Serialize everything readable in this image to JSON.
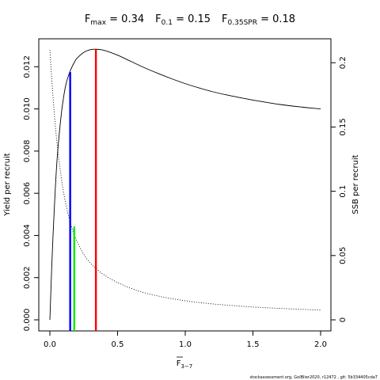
{
  "title": {
    "fmax_label": "F",
    "fmax_sub": "max",
    "fmax_value": " = 0.34",
    "f01_label": "F",
    "f01_sub": "0.1",
    "f01_value": " = 0.15",
    "f035_label": "F",
    "f035_sub": "0.35SPR",
    "f035_value": " = 0.18"
  },
  "footer": "stockassessment.org, GolBlier2020, r12472 , git: 5b334405cda7",
  "chart_data": {
    "type": "line",
    "xlabel": "F",
    "xlabel_sub": "3−7",
    "ylabel": "Yield per recruit",
    "y2label": "SSB per recruit",
    "xlim": [
      0,
      2
    ],
    "ylim": [
      0,
      0.0128
    ],
    "y2lim": [
      0,
      0.21
    ],
    "x_ticks": [
      0.0,
      0.5,
      1.0,
      1.5,
      2.0
    ],
    "x_tick_labels": [
      "0.0",
      "0.5",
      "1.0",
      "1.5",
      "2.0"
    ],
    "y_ticks": [
      0.0,
      0.002,
      0.004,
      0.006,
      0.008,
      0.01,
      0.012
    ],
    "y_tick_labels": [
      "0.000",
      "0.002",
      "0.004",
      "0.006",
      "0.008",
      "0.010",
      "0.012"
    ],
    "y2_ticks": [
      0,
      0.05,
      0.1,
      0.15,
      0.2
    ],
    "y2_tick_labels": [
      "0",
      "0.05",
      "0.1",
      "0.15",
      "0.2"
    ],
    "series": [
      {
        "style": "solid",
        "axis": "left",
        "x": [
          0,
          0.02,
          0.05,
          0.08,
          0.1,
          0.12,
          0.15,
          0.18,
          0.2,
          0.25,
          0.3,
          0.34,
          0.4,
          0.5,
          0.6,
          0.7,
          0.8,
          0.9,
          1.0,
          1.1,
          1.2,
          1.3,
          1.4,
          1.5,
          1.6,
          1.7,
          1.8,
          1.9,
          2.0
        ],
        "y": [
          0.0,
          0.0035,
          0.0073,
          0.0095,
          0.0105,
          0.0112,
          0.0118,
          0.0122,
          0.0124,
          0.01268,
          0.01281,
          0.01283,
          0.01278,
          0.01255,
          0.01225,
          0.01195,
          0.01168,
          0.01143,
          0.0112,
          0.011,
          0.01082,
          0.01067,
          0.01054,
          0.01042,
          0.01031,
          0.01021,
          0.01013,
          0.01006,
          0.01
        ]
      },
      {
        "style": "dotted",
        "axis": "right",
        "x": [
          0,
          0.02,
          0.05,
          0.08,
          0.1,
          0.12,
          0.15,
          0.18,
          0.2,
          0.25,
          0.3,
          0.34,
          0.4,
          0.5,
          0.6,
          0.7,
          0.8,
          0.9,
          1.0,
          1.1,
          1.2,
          1.3,
          1.4,
          1.5,
          1.6,
          1.7,
          1.8,
          1.9,
          2.0
        ],
        "y": [
          0.21,
          0.178,
          0.14,
          0.114,
          0.1,
          0.089,
          0.076,
          0.066,
          0.061,
          0.051,
          0.044,
          0.04,
          0.035,
          0.029,
          0.0245,
          0.021,
          0.0185,
          0.0165,
          0.0148,
          0.0135,
          0.0124,
          0.0115,
          0.0107,
          0.01,
          0.0094,
          0.0089,
          0.0084,
          0.008,
          0.0076
        ]
      }
    ],
    "reference_lines": [
      {
        "x": 0.15,
        "y": 0.01175,
        "axis": "left",
        "color": "#0000ff"
      },
      {
        "x": 0.18,
        "y": 0.0725,
        "axis": "right",
        "color": "#00ee00"
      },
      {
        "x": 0.34,
        "y": 0.01283,
        "axis": "left",
        "color": "#ff0000"
      }
    ]
  }
}
